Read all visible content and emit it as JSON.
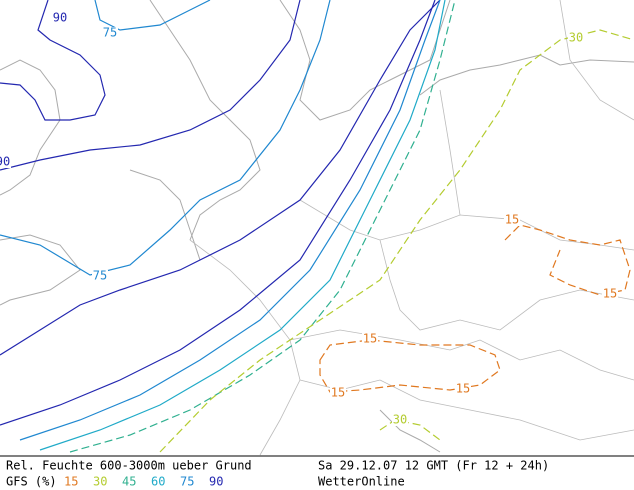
{
  "map": {
    "contour_labels": [
      {
        "text": "90",
        "level": 5
      },
      {
        "text": "75",
        "level": 4
      },
      {
        "text": "90",
        "level": 5
      },
      {
        "text": "75",
        "level": 4
      },
      {
        "text": "30",
        "level": 1
      },
      {
        "text": "15",
        "level": 0
      },
      {
        "text": "15",
        "level": 0
      },
      {
        "text": "15",
        "level": 0
      },
      {
        "text": "15",
        "level": 0
      },
      {
        "text": "15",
        "level": 0
      },
      {
        "text": "30",
        "level": 1
      }
    ]
  },
  "footer": {
    "title": "Rel. Feuchte 600-3000m ueber Grund",
    "model": "GFS (%)",
    "levels": [
      {
        "label": "15",
        "color": "#e07820"
      },
      {
        "label": "30",
        "color": "#b4cc30"
      },
      {
        "label": "45",
        "color": "#30b090"
      },
      {
        "label": "60",
        "color": "#20aac8"
      },
      {
        "label": "75",
        "color": "#2088d0"
      },
      {
        "label": "90",
        "color": "#2428b0"
      }
    ],
    "date": "Sa 29.12.07 12 GMT (Fr 12 + 24h)",
    "source": "WetterOnline"
  }
}
